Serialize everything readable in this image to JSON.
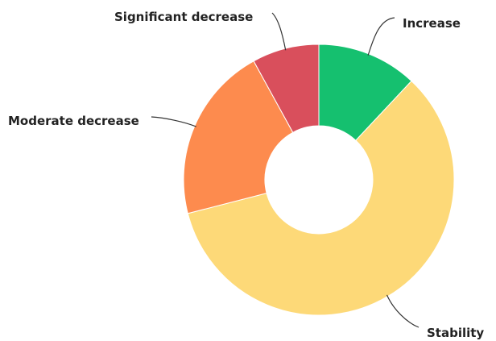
{
  "chart_data": {
    "type": "pie",
    "variant": "donut",
    "categories": [
      "Increase",
      "Stability",
      "Moderate decrease",
      "Significant decrease"
    ],
    "values": [
      12,
      59,
      21,
      8
    ],
    "colors": [
      "#15c06f",
      "#fdd978",
      "#fd8b4e",
      "#d94f5c"
    ],
    "title": "",
    "legend": "none"
  }
}
